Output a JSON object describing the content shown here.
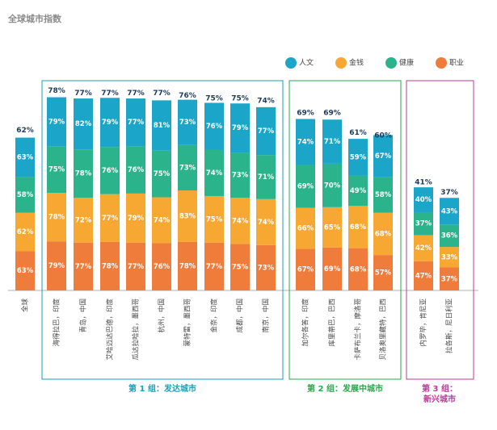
{
  "chart_data": {
    "type": "bar",
    "title": "全球城市指数",
    "categories": [
      "全球",
      "海得拉巴，印度",
      "青岛，中国",
      "艾哈迈达巴德，印度",
      "瓜达拉哈拉，墨西哥",
      "杭州，中国",
      "蒙特雷，墨西哥",
      "金奈，印度",
      "成都，中国",
      "南京，中国",
      "加尔各答，印度",
      "库里蒂巴，巴西",
      "卡萨布兰卡，摩洛哥",
      "贝洛奥里藏特，巴西",
      "内罗毕，肯尼亚",
      "拉各斯，尼日利亚"
    ],
    "totals": [
      62,
      78,
      77,
      77,
      77,
      77,
      76,
      75,
      75,
      74,
      69,
      69,
      61,
      60,
      41,
      37
    ],
    "total_labels": [
      "62%",
      "78%",
      "77%",
      "77%",
      "77%",
      "77%",
      "76%",
      "75%",
      "75%",
      "74%",
      "69%",
      "69%",
      "61%",
      "60%",
      "41%",
      "37%"
    ],
    "series": [
      {
        "name": "职业",
        "color": "#f07c3c",
        "values": [
          63,
          79,
          77,
          78,
          77,
          76,
          78,
          77,
          75,
          73,
          67,
          69,
          68,
          57,
          47,
          37
        ],
        "value_labels": [
          "63%",
          "79%",
          "77%",
          "78%",
          "77%",
          "76%",
          "78%",
          "77%",
          "75%",
          "73%",
          "67%",
          "69%",
          "68%",
          "57%",
          "47%",
          "37%"
        ]
      },
      {
        "name": "金钱",
        "color": "#f7a833",
        "values": [
          62,
          78,
          72,
          77,
          79,
          74,
          83,
          75,
          74,
          74,
          66,
          65,
          68,
          68,
          42,
          33
        ],
        "value_labels": [
          "62%",
          "78%",
          "72%",
          "77%",
          "79%",
          "74%",
          "83%",
          "75%",
          "74%",
          "74%",
          "66%",
          "65%",
          "68%",
          "68%",
          "42%",
          "33%"
        ]
      },
      {
        "name": "健康",
        "color": "#2bb38c",
        "values": [
          58,
          75,
          78,
          76,
          76,
          75,
          73,
          74,
          73,
          71,
          69,
          70,
          49,
          58,
          37,
          36
        ],
        "value_labels": [
          "58%",
          "75%",
          "78%",
          "76%",
          "76%",
          "75%",
          "73%",
          "74%",
          "73%",
          "71%",
          "69%",
          "70%",
          "49%",
          "58%",
          "37%",
          "36%"
        ]
      },
      {
        "name": "人文",
        "color": "#1ba6c9",
        "values": [
          63,
          79,
          82,
          79,
          77,
          81,
          73,
          76,
          79,
          77,
          74,
          71,
          59,
          67,
          40,
          43
        ],
        "value_labels": [
          "63%",
          "79%",
          "82%",
          "79%",
          "77%",
          "81%",
          "73%",
          "76%",
          "79%",
          "77%",
          "74%",
          "71%",
          "59%",
          "67%",
          "40%",
          "43%"
        ]
      }
    ],
    "groups": [
      {
        "label": "第 1 组：发达城市",
        "color": "#1a9fb5"
      },
      {
        "label": "第 2 组：发展中城市",
        "color": "#2aa84a"
      },
      {
        "label": [
          "第 3 组：",
          "新兴城市"
        ],
        "color": "#b83a9a"
      }
    ]
  }
}
